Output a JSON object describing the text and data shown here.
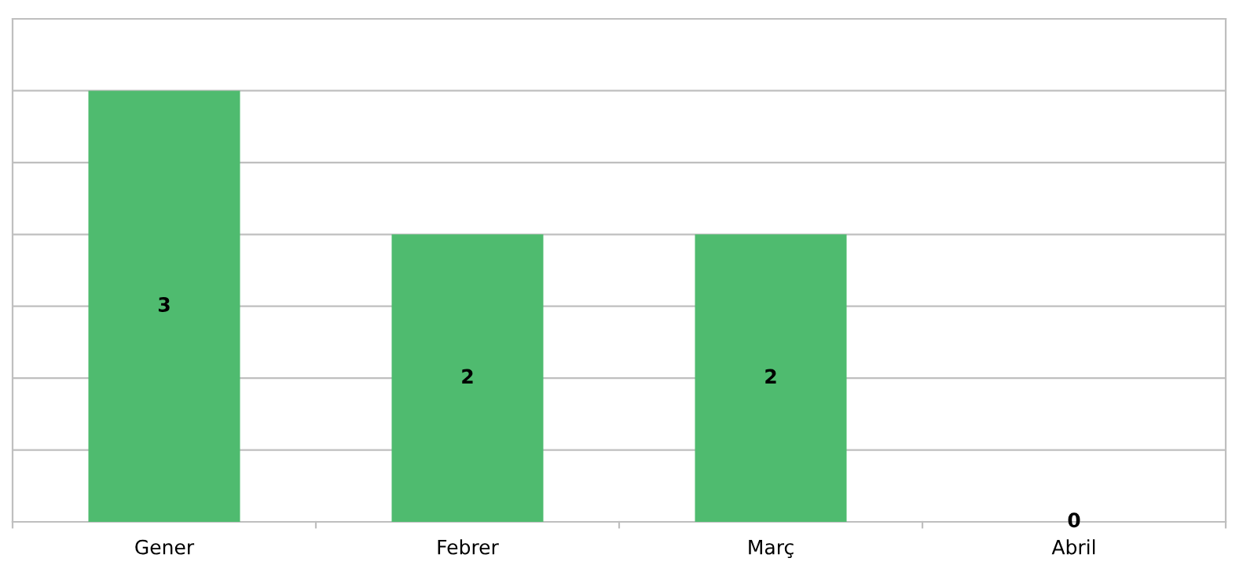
{
  "chart_data": {
    "type": "bar",
    "categories": [
      "Gener",
      "Febrer",
      "Març",
      "Abril"
    ],
    "values": [
      3,
      2,
      2,
      0
    ],
    "color": "#4fbb6f",
    "data_labels": true,
    "ylim": [
      0,
      3.5
    ],
    "yticks": [
      {
        "value": 0,
        "label": null
      },
      {
        "value": 0.5,
        "label": null
      },
      {
        "value": 1,
        "label": null
      },
      {
        "value": 1.5,
        "label": null
      },
      {
        "value": 2,
        "label": null
      },
      {
        "value": 2.5,
        "label": null
      },
      {
        "value": 3,
        "label": null
      },
      {
        "value": 3.5,
        "label": null
      }
    ],
    "grid": "y",
    "tick_labels": "x",
    "legend": false
  }
}
